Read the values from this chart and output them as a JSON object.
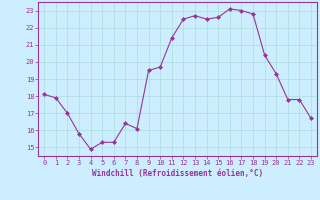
{
  "x": [
    0,
    1,
    2,
    3,
    4,
    5,
    6,
    7,
    8,
    9,
    10,
    11,
    12,
    13,
    14,
    15,
    16,
    17,
    18,
    19,
    20,
    21,
    22,
    23
  ],
  "y": [
    18.1,
    17.9,
    17.0,
    15.8,
    14.9,
    15.3,
    15.3,
    16.4,
    16.1,
    19.5,
    19.7,
    21.4,
    22.5,
    22.7,
    22.5,
    22.6,
    23.1,
    23.0,
    22.8,
    20.4,
    19.3,
    17.8,
    17.8,
    16.7
  ],
  "line_color": "#993399",
  "marker": "D",
  "marker_size": 2,
  "bg_color": "#cceeff",
  "grid_color": "#aadddd",
  "xlabel": "Windchill (Refroidissement éolien,°C)",
  "xlabel_color": "#993399",
  "tick_color": "#993399",
  "spine_color": "#993399",
  "ylim": [
    14.5,
    23.5
  ],
  "xlim": [
    -0.5,
    23.5
  ],
  "yticks": [
    15,
    16,
    17,
    18,
    19,
    20,
    21,
    22,
    23
  ],
  "xticks": [
    0,
    1,
    2,
    3,
    4,
    5,
    6,
    7,
    8,
    9,
    10,
    11,
    12,
    13,
    14,
    15,
    16,
    17,
    18,
    19,
    20,
    21,
    22,
    23
  ],
  "tick_fontsize": 5,
  "xlabel_fontsize": 5.5
}
